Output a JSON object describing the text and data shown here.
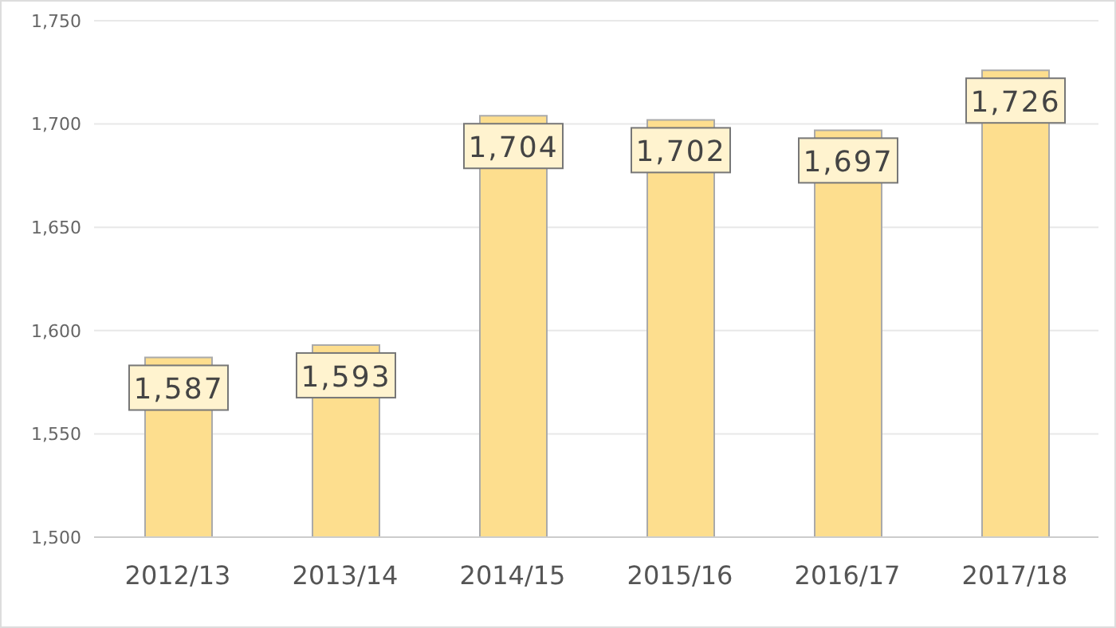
{
  "chart_data": {
    "type": "bar",
    "categories": [
      "2012/13",
      "2013/14",
      "2014/15",
      "2015/16",
      "2016/17",
      "2017/18"
    ],
    "values": [
      1587,
      1593,
      1704,
      1702,
      1697,
      1726
    ],
    "color": "#fdde8e",
    "value_labels": [
      "1,587",
      "1,593",
      "1,704",
      "1,702",
      "1,697",
      "1,726"
    ],
    "ylim": [
      1500,
      1750
    ],
    "yticks": [
      {
        "value": 1500,
        "label": "1,500"
      },
      {
        "value": 1550,
        "label": "1,550"
      },
      {
        "value": 1600,
        "label": "1,600"
      },
      {
        "value": 1650,
        "label": "1,650"
      },
      {
        "value": 1700,
        "label": "1,700"
      },
      {
        "value": 1750,
        "label": "1,750"
      }
    ],
    "grid": "y"
  }
}
